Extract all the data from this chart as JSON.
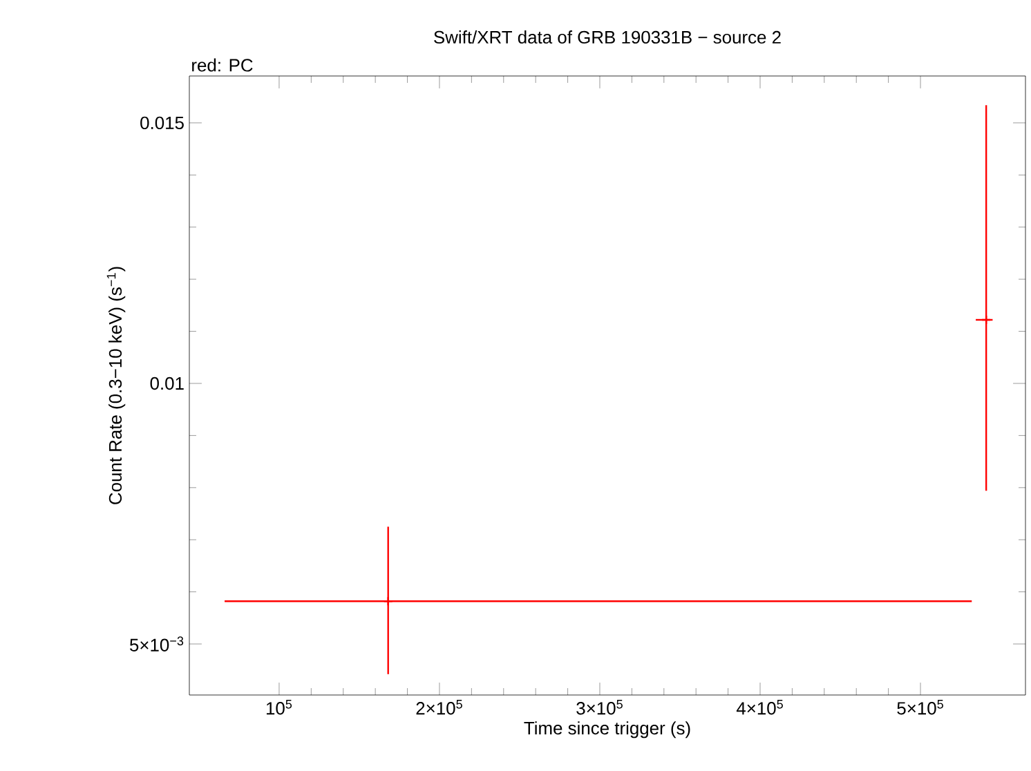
{
  "chart_data": {
    "type": "scatter",
    "title": "Swift/XRT data of GRB 190331B − source 2",
    "xlabel": "Time since trigger (s)",
    "ylabel": "Count Rate (0.3−10 keV) (s$^{−1}$)",
    "annotations": [
      "red: PC"
    ],
    "series": [
      {
        "color": "#ff0000",
        "x": [
          168000,
          541000
        ],
        "values": [
          0.00582,
          0.01122
        ],
        "errors": [
          [
            0.00442,
            0.00725
          ],
          [
            0.00794,
            0.01534
          ]
        ],
        "xerrors": [
          [
            66000,
            532000
          ],
          [
            534500,
            545000
          ]
        ]
      }
    ],
    "marker": "cross",
    "xlim": [
      44000,
      565500
    ],
    "ylim": [
      0.00402,
      0.0159
    ],
    "xticks": [
      {
        "value": 100000,
        "label": "10$^{5}$"
      },
      {
        "value": 200000,
        "label": "2×10$^{5}$"
      },
      {
        "value": 300000,
        "label": "3×10$^{5}$"
      },
      {
        "value": 400000,
        "label": "4×10$^{5}$"
      },
      {
        "value": 500000,
        "label": "5×10$^{5}$"
      }
    ],
    "yticks": [
      {
        "value": 0.005,
        "label": "5×10$^{−3}$"
      },
      0.01,
      0.015
    ],
    "grid": false
  }
}
